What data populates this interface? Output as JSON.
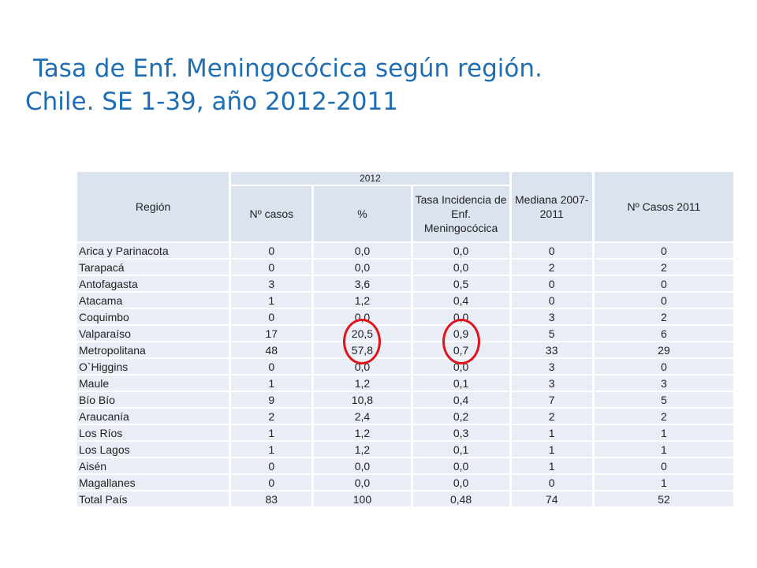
{
  "title": {
    "line1": "Tasa de Enf. Meningocócica según región.",
    "line2": "Chile. SE 1-39, año 2012-2011"
  },
  "table": {
    "headers": {
      "region": "Región",
      "year_group": "2012",
      "casos": "Nº casos",
      "pct": "%",
      "tasa": "Tasa Incidencia de Enf. Meningocócica",
      "mediana": "Mediana 2007-2011",
      "casos2011": "Nº Casos 2011"
    },
    "rows": [
      [
        "Arica y Parinacota",
        "0",
        "0,0",
        "0,0",
        "0",
        "0"
      ],
      [
        "Tarapacá",
        "0",
        "0,0",
        "0,0",
        "2",
        "2"
      ],
      [
        "Antofagasta",
        "3",
        "3,6",
        "0,5",
        "0",
        "0"
      ],
      [
        "Atacama",
        "1",
        "1,2",
        "0,4",
        "0",
        "0"
      ],
      [
        "Coquimbo",
        "0",
        "0,0",
        "0,0",
        "3",
        "2"
      ],
      [
        "Valparaíso",
        "17",
        "20,5",
        "0,9",
        "5",
        "6"
      ],
      [
        "Metropolitana",
        "48",
        "57,8",
        "0,7",
        "33",
        "29"
      ],
      [
        "O`Higgins",
        "0",
        "0,0",
        "0,0",
        "3",
        "0"
      ],
      [
        "Maule",
        "1",
        "1,2",
        "0,1",
        "3",
        "3"
      ],
      [
        "Bío Bío",
        "9",
        "10,8",
        "0,4",
        "7",
        "5"
      ],
      [
        "Araucanía",
        "2",
        "2,4",
        "0,2",
        "2",
        "2"
      ],
      [
        "Los Ríos",
        "1",
        "1,2",
        "0,3",
        "1",
        "1"
      ],
      [
        "Los Lagos",
        "1",
        "1,2",
        "0,1",
        "1",
        "1"
      ],
      [
        "Aisén",
        "0",
        "0,0",
        "0,0",
        "1",
        "0"
      ],
      [
        "Magallanes",
        "0",
        "0,0",
        "0,0",
        "0",
        "1"
      ],
      [
        "Total País",
        "83",
        "100",
        "0,48",
        "74",
        "52"
      ]
    ]
  },
  "annotations": {
    "circle_color": "#e0141e",
    "circled_columns": [
      "%",
      "Tasa Incidencia de Enf. Meningocócica"
    ],
    "circled_rows": [
      "Valparaíso",
      "Metropolitana"
    ]
  }
}
